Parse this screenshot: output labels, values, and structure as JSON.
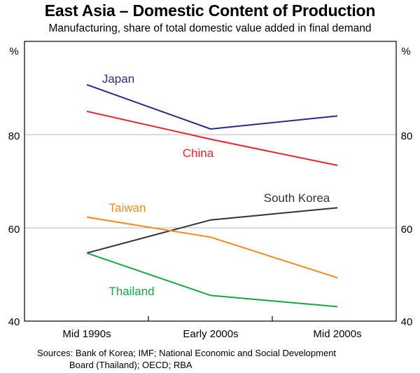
{
  "chart_data": {
    "type": "line",
    "title": "East Asia – Domestic Content of Production",
    "subtitle": "Manufacturing, share of total domestic value added in final demand",
    "ylabel_left": "%",
    "ylabel_right": "%",
    "ylim": [
      40,
      100
    ],
    "yticks": [
      40,
      60,
      80
    ],
    "categories": [
      "Mid 1990s",
      "Early 2000s",
      "Mid 2000s"
    ],
    "series": [
      {
        "name": "Japan",
        "color": "#2b2b8c",
        "values": [
          90.7,
          81.2,
          84.0
        ]
      },
      {
        "name": "China",
        "color": "#e8262d",
        "values": [
          85.0,
          79.0,
          73.4
        ]
      },
      {
        "name": "South Korea",
        "color": "#333333",
        "values": [
          54.6,
          61.7,
          64.3
        ]
      },
      {
        "name": "Taiwan",
        "color": "#f58b1f",
        "values": [
          62.3,
          58.0,
          49.3
        ]
      },
      {
        "name": "Thailand",
        "color": "#19a64a",
        "values": [
          54.6,
          45.5,
          43.1
        ]
      }
    ]
  },
  "footer": {
    "sources_line1": "Sources: Bank of Korea; IMF; National Economic and Social Development",
    "sources_line2": "Board (Thailand); OECD; RBA"
  }
}
